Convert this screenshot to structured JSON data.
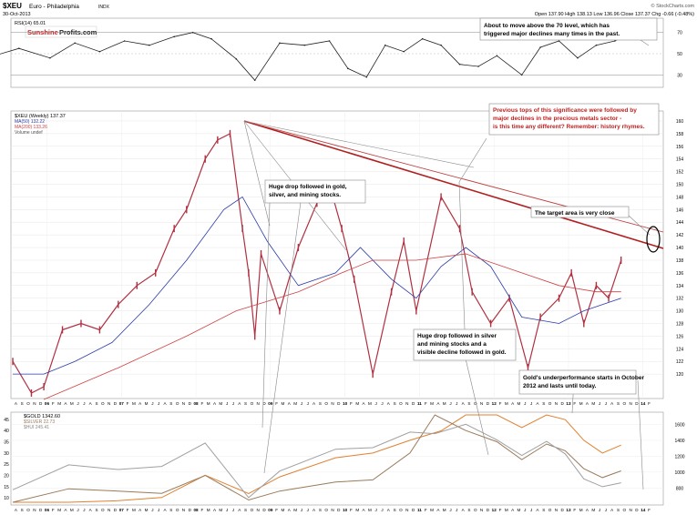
{
  "header": {
    "ticker": "$XEU",
    "name": "Euro - Philadelphia",
    "exchange": "INDX",
    "date": "30-Oct-2013",
    "ohlc": "Open 137.90   High 138.13   Low 136.96   Close 137.37   Chg -0.66 (-0.48%)",
    "watermark": "© StockCharts.com",
    "logo_a": "Sunshine",
    "logo_b": "Profits.com"
  },
  "chart_data": [
    {
      "type": "line",
      "panel": "indicator",
      "legend": "RSI(14) 65.01",
      "yticks": [
        30,
        50,
        70
      ],
      "ylim": [
        20,
        80
      ],
      "reference_lines": [
        30,
        70
      ],
      "x_dates": [
        "2005-05",
        "2005-09",
        "2006-02",
        "2006-06",
        "2006-10",
        "2007-02",
        "2007-06",
        "2007-10",
        "2008-01",
        "2008-04",
        "2008-08",
        "2008-11",
        "2009-03",
        "2009-07",
        "2009-11",
        "2010-02",
        "2010-05",
        "2010-08",
        "2010-11",
        "2011-02",
        "2011-05",
        "2011-08",
        "2011-11",
        "2012-02",
        "2012-06",
        "2012-09",
        "2012-12",
        "2013-03",
        "2013-06",
        "2013-09",
        "2013-10"
      ],
      "values": [
        48,
        55,
        46,
        60,
        52,
        62,
        58,
        66,
        70,
        64,
        45,
        25,
        60,
        58,
        62,
        36,
        28,
        58,
        52,
        64,
        58,
        40,
        38,
        48,
        30,
        56,
        62,
        46,
        58,
        62,
        65
      ]
    },
    {
      "type": "line",
      "panel": "price",
      "legend": [
        "$XEU (Weekly) 137.37",
        "MA(50) 132.22",
        "MA(200) 133.26",
        "Volume undef"
      ],
      "yticks": [
        120,
        122,
        124,
        126,
        128,
        130,
        132,
        134,
        136,
        138,
        140,
        142,
        144,
        146,
        148,
        150,
        152,
        154,
        156,
        158,
        160
      ],
      "ylim": [
        117,
        161
      ],
      "xticks": [
        "A",
        "S",
        "O",
        "N",
        "D",
        "06",
        "F",
        "M",
        "A",
        "M",
        "J",
        "J",
        "A",
        "S",
        "O",
        "N",
        "D",
        "07",
        "F",
        "M",
        "A",
        "M",
        "J",
        "J",
        "A",
        "S",
        "O",
        "N",
        "D",
        "08",
        "F",
        "M",
        "A",
        "M",
        "J",
        "J",
        "A",
        "S",
        "O",
        "N",
        "D",
        "09",
        "F",
        "M",
        "A",
        "M",
        "J",
        "J",
        "A",
        "S",
        "O",
        "N",
        "D",
        "10",
        "F",
        "M",
        "A",
        "M",
        "J",
        "J",
        "A",
        "S",
        "O",
        "N",
        "D",
        "11",
        "F",
        "M",
        "A",
        "M",
        "J",
        "J",
        "A",
        "S",
        "O",
        "N",
        "D",
        "12",
        "F",
        "M",
        "A",
        "M",
        "J",
        "J",
        "A",
        "S",
        "O",
        "N",
        "D",
        "13",
        "F",
        "M",
        "A",
        "M",
        "J",
        "J",
        "A",
        "S",
        "O",
        "N",
        "D",
        "14",
        "F"
      ],
      "series": [
        {
          "name": "$XEU (Weekly)",
          "color": "#b03040",
          "x": [
            "2005-08",
            "2005-11",
            "2006-01",
            "2006-04",
            "2006-07",
            "2006-10",
            "2007-01",
            "2007-04",
            "2007-07",
            "2007-10",
            "2007-12",
            "2008-03",
            "2008-05",
            "2008-07",
            "2008-09",
            "2008-10",
            "2008-11",
            "2008-12",
            "2009-03",
            "2009-06",
            "2009-09",
            "2009-11",
            "2010-01",
            "2010-03",
            "2010-06",
            "2010-09",
            "2010-11",
            "2011-01",
            "2011-05",
            "2011-08",
            "2011-10",
            "2012-01",
            "2012-04",
            "2012-07",
            "2012-09",
            "2012-12",
            "2013-02",
            "2013-04",
            "2013-06",
            "2013-08",
            "2013-10"
          ],
          "values": [
            122,
            117,
            118,
            127,
            128,
            127,
            131,
            134,
            136,
            143,
            146,
            154,
            157,
            158,
            143,
            136,
            126,
            139,
            130,
            140,
            147,
            150,
            143,
            135,
            120,
            133,
            141,
            130,
            148,
            143,
            133,
            128,
            132,
            121,
            129,
            132,
            136,
            128,
            134,
            132,
            138
          ]
        },
        {
          "name": "MA(50)",
          "color": "#2a3aa8",
          "x": [
            "2005-08",
            "2006-01",
            "2006-06",
            "2006-12",
            "2007-06",
            "2007-12",
            "2008-06",
            "2008-09",
            "2009-01",
            "2009-06",
            "2009-12",
            "2010-04",
            "2010-09",
            "2011-01",
            "2011-05",
            "2011-09",
            "2012-01",
            "2012-06",
            "2012-12",
            "2013-04",
            "2013-10"
          ],
          "values": [
            120,
            120,
            122,
            125,
            131,
            138,
            146,
            148,
            141,
            134,
            136,
            140,
            135,
            132,
            137,
            140,
            137,
            129,
            128,
            130,
            132
          ]
        },
        {
          "name": "MA(200)",
          "color": "#d04040",
          "x": [
            "2006-01",
            "2007-01",
            "2007-12",
            "2008-08",
            "2009-06",
            "2010-01",
            "2010-06",
            "2011-01",
            "2011-09",
            "2012-06",
            "2012-12",
            "2013-06",
            "2013-10"
          ],
          "values": [
            116,
            121,
            126,
            130,
            133,
            136,
            138,
            138,
            139,
            136,
            134,
            133,
            133
          ]
        }
      ]
    },
    {
      "type": "line",
      "panel": "lower",
      "legend": [
        "$GOLD 1342.60",
        "$SILVER 22.73",
        "$HUI 245.41"
      ],
      "yticks_left": [
        10,
        15,
        20,
        25,
        30,
        35,
        40,
        45
      ],
      "yticks_right": [
        800,
        1000,
        1200,
        1400,
        1600
      ],
      "series": [
        {
          "name": "$GOLD",
          "color": "#e08030",
          "x": [
            "2005-08",
            "2006-05",
            "2007-01",
            "2007-08",
            "2008-03",
            "2008-10",
            "2009-03",
            "2009-12",
            "2010-06",
            "2010-12",
            "2011-05",
            "2011-09",
            "2012-02",
            "2012-06",
            "2012-10",
            "2013-01",
            "2013-04",
            "2013-07",
            "2013-10"
          ],
          "values": [
            440,
            620,
            640,
            680,
            960,
            730,
            940,
            1180,
            1240,
            1400,
            1520,
            1860,
            1780,
            1560,
            1780,
            1660,
            1400,
            1240,
            1340
          ]
        },
        {
          "name": "$SILVER",
          "color": "#9a7a5a",
          "x": [
            "2005-08",
            "2006-05",
            "2007-01",
            "2007-08",
            "2008-03",
            "2008-10",
            "2009-03",
            "2009-12",
            "2010-06",
            "2010-12",
            "2011-04",
            "2011-09",
            "2012-02",
            "2012-06",
            "2012-10",
            "2013-01",
            "2013-04",
            "2013-07",
            "2013-10"
          ],
          "values": [
            7,
            14,
            13,
            12,
            20,
            9,
            13,
            17,
            18,
            30,
            48,
            40,
            35,
            27,
            34,
            31,
            23,
            19,
            22
          ]
        },
        {
          "name": "$HUI",
          "color": "#a0a0a0",
          "x": [
            "2005-08",
            "2006-05",
            "2007-01",
            "2007-08",
            "2008-03",
            "2008-10",
            "2009-03",
            "2009-12",
            "2010-06",
            "2010-12",
            "2011-04",
            "2011-09",
            "2012-02",
            "2012-06",
            "2012-10",
            "2013-01",
            "2013-04",
            "2013-07",
            "2013-10"
          ],
          "values": [
            200,
            360,
            330,
            350,
            500,
            150,
            320,
            460,
            470,
            570,
            560,
            620,
            520,
            420,
            510,
            430,
            270,
            220,
            245
          ]
        }
      ]
    }
  ],
  "annotations": {
    "rsi_note": "About to move above the 70 level, which has triggered major declines many times in the past.",
    "tops_note": "Previous tops of this significance were followed by major declines in the precious metals sector - is this time any different? Remember: history rhymes.",
    "drop_2008": "Huge drop followed in gold, silver, and mining stocks.",
    "target": "The target area is very close",
    "drop_2011": "Huge drop followed in silver and mining stocks and a visible decline followed in gold.",
    "gold_under": "Gold's underperformance starts in October 2012 and lasts until today."
  },
  "colors": {
    "price": "#b03040",
    "ma50": "#2a3aa8",
    "ma200": "#d04040",
    "trendline": "#b02020",
    "gold": "#e08030",
    "silver": "#9a7a5a",
    "hui": "#a0a0a0",
    "note_red": "#c02020"
  }
}
